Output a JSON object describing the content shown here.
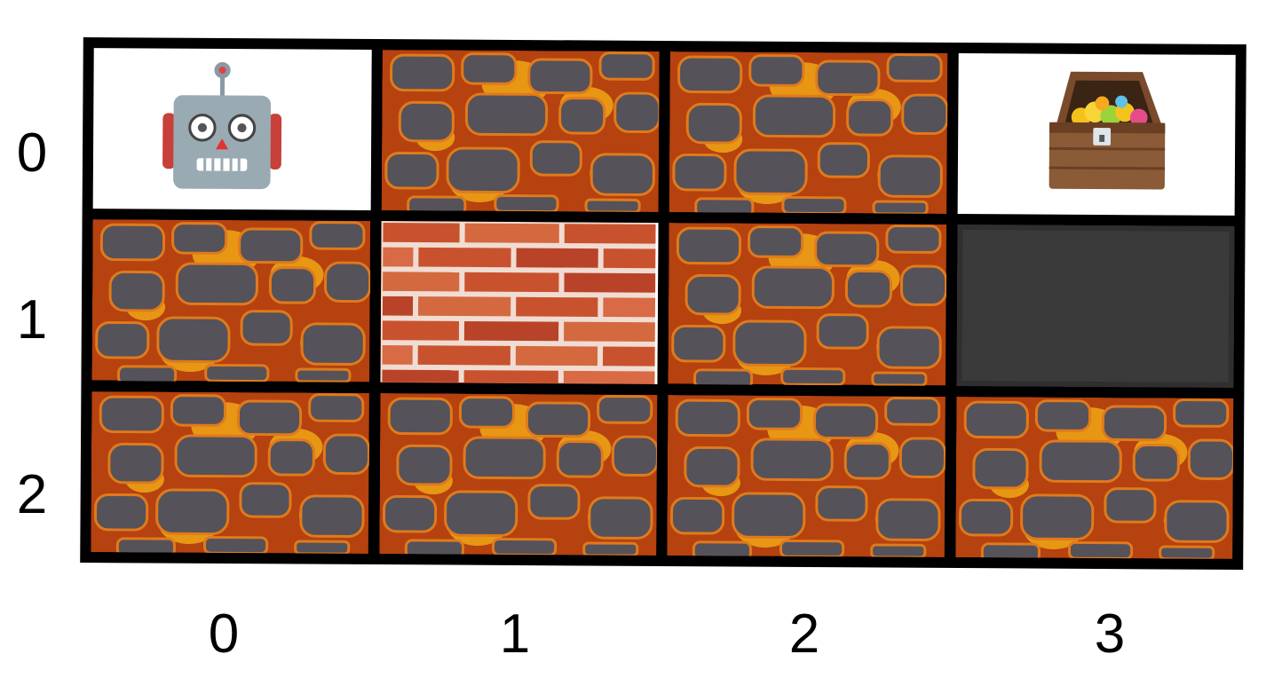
{
  "grid": {
    "rows": 3,
    "cols": 4,
    "row_labels": [
      "0",
      "1",
      "2"
    ],
    "col_labels": [
      "0",
      "1",
      "2",
      "3"
    ],
    "cells": [
      [
        "robot",
        "lava",
        "lava",
        "treasure"
      ],
      [
        "lava",
        "brick",
        "lava",
        "wall"
      ],
      [
        "lava",
        "lava",
        "lava",
        "lava"
      ]
    ]
  },
  "icons": {
    "agent": "robot-icon",
    "goal": "treasure-chest-icon"
  },
  "colors": {
    "lava_base": "#b5420f",
    "lava_glow": "#f8b417",
    "rock": "#55525a",
    "brick": "#c9522e",
    "mortar": "#f2e0d6",
    "wall": "#333333",
    "grid_line": "#000000"
  }
}
